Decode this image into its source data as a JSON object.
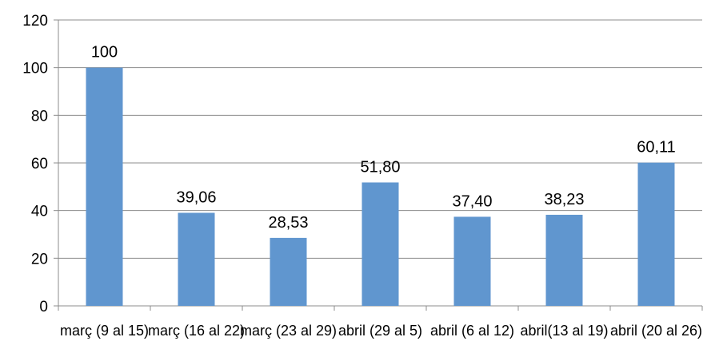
{
  "chart_data": {
    "type": "bar",
    "categories": [
      "març (9 al 15)",
      "març (16 al 22)",
      "març (23 al 29)",
      "abril (29 al 5)",
      "abril (6 al 12)",
      "abril(13 al 19)",
      "abril (20 al 26)"
    ],
    "values": [
      100,
      39.06,
      28.53,
      51.8,
      37.4,
      38.23,
      60.11
    ],
    "data_labels": [
      "100",
      "39,06",
      "28,53",
      "51,80",
      "37,40",
      "38,23",
      "60,11"
    ],
    "yticks": [
      "0",
      "20",
      "40",
      "60",
      "80",
      "100",
      "120"
    ],
    "ylim": [
      0,
      120
    ],
    "grid": true,
    "legend": "none",
    "bar_color": "#6096CF",
    "grid_color": "#8C8C8C",
    "axis_color": "#8C8C8C"
  }
}
